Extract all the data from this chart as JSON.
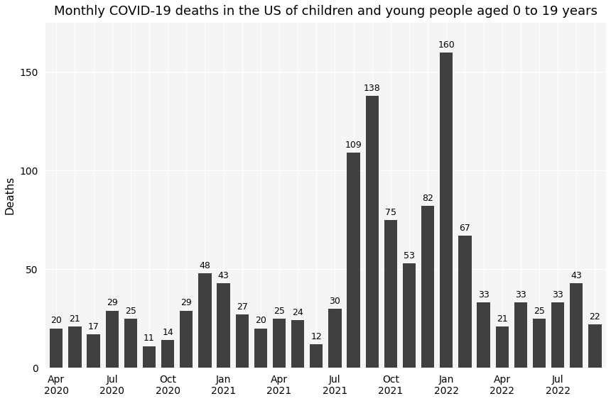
{
  "title": "Monthly COVID-19 deaths in the US of children and young people aged 0 to 19 years",
  "ylabel": "Deaths",
  "bar_color": "#404040",
  "background_color": "#ffffff",
  "panel_color": "#f5f5f5",
  "grid_color": "#ffffff",
  "values": [
    20,
    21,
    17,
    29,
    25,
    11,
    14,
    29,
    48,
    43,
    27,
    20,
    25,
    24,
    12,
    30,
    109,
    138,
    75,
    53,
    82,
    160,
    67,
    33,
    21,
    33,
    25,
    33,
    43,
    22
  ],
  "tick_labels": [
    "Apr\n2020",
    "Jul\n2020",
    "Oct\n2020",
    "Jan\n2021",
    "Apr\n2021",
    "Jul\n2021",
    "Oct\n2021",
    "Jan\n2022",
    "Apr\n2022",
    "Jul\n2022"
  ],
  "tick_positions": [
    0,
    3,
    6,
    9,
    12,
    15,
    18,
    21,
    24,
    27
  ],
  "ylim": [
    0,
    175
  ],
  "yticks": [
    0,
    50,
    100,
    150
  ],
  "title_fontsize": 13,
  "label_fontsize": 11,
  "tick_fontsize": 10,
  "annot_fontsize": 9
}
